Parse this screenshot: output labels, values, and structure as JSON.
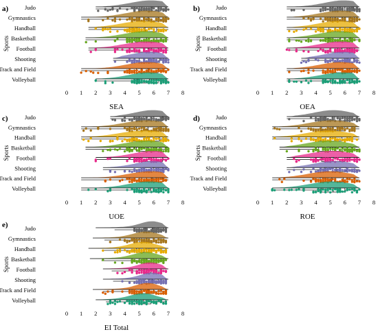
{
  "colors": {
    "Judo": "#666666",
    "Gymnastics": "#a6761d",
    "Handball": "#e6ab02",
    "Basketball": "#66a61e",
    "Football": "#e7298a",
    "Shooting": "#7570b3",
    "Track and Field": "#d95f02",
    "Volleyball": "#1b9e77"
  },
  "chart_data": [
    {
      "type": "raincloud",
      "label": "a)",
      "xlabel": "SEA",
      "ylabel": "Sports",
      "xlim": [
        0,
        8
      ],
      "xticks": [
        0,
        1,
        2,
        3,
        4,
        5,
        6,
        7,
        8
      ],
      "categories": [
        "Judo",
        "Gymnastics",
        "Handball",
        "Basketball",
        "Football",
        "Shooting",
        "Track and Field",
        "Volleyball"
      ],
      "series": [
        {
          "sport": "Judo",
          "min": 2.0,
          "q1": 5.0,
          "median": 5.9,
          "q3": 6.5,
          "max": 7.0,
          "range": [
            2.0,
            7.0
          ]
        },
        {
          "sport": "Gymnastics",
          "min": 1.0,
          "q1": 4.8,
          "median": 5.6,
          "q3": 6.3,
          "max": 7.0,
          "range": [
            1.0,
            7.0
          ]
        },
        {
          "sport": "Handball",
          "min": 1.5,
          "q1": 4.6,
          "median": 5.4,
          "q3": 6.2,
          "max": 7.0,
          "range": [
            1.5,
            7.0
          ]
        },
        {
          "sport": "Basketball",
          "min": 1.3,
          "q1": 4.7,
          "median": 5.5,
          "q3": 6.2,
          "max": 7.0,
          "range": [
            1.3,
            7.0
          ]
        },
        {
          "sport": "Football",
          "min": 1.5,
          "q1": 4.7,
          "median": 5.6,
          "q3": 6.3,
          "max": 7.0,
          "range": [
            1.5,
            7.0
          ]
        },
        {
          "sport": "Shooting",
          "min": 3.2,
          "q1": 5.0,
          "median": 5.8,
          "q3": 6.4,
          "max": 7.0,
          "range": [
            3.2,
            7.0
          ]
        },
        {
          "sport": "Track and Field",
          "min": 1.0,
          "q1": 4.8,
          "median": 5.6,
          "q3": 6.3,
          "max": 7.0,
          "range": [
            1.0,
            7.0
          ]
        },
        {
          "sport": "Volleyball",
          "min": 2.0,
          "q1": 4.9,
          "median": 5.7,
          "q3": 6.3,
          "max": 7.0,
          "range": [
            2.0,
            7.0
          ]
        }
      ]
    },
    {
      "type": "raincloud",
      "label": "b)",
      "xlabel": "OEA",
      "ylabel": "Sports",
      "xlim": [
        0,
        8
      ],
      "xticks": [
        0,
        1,
        2,
        3,
        4,
        5,
        6,
        7,
        8
      ],
      "categories": [
        "Judo",
        "Gymnastics",
        "Handball",
        "Basketball",
        "Football",
        "Shooting",
        "Track and Field",
        "Volleyball"
      ],
      "series": [
        {
          "sport": "Judo",
          "min": 2.0,
          "q1": 5.2,
          "median": 6.0,
          "q3": 6.6,
          "max": 7.0,
          "range": [
            2.0,
            7.0
          ]
        },
        {
          "sport": "Gymnastics",
          "min": 2.0,
          "q1": 5.0,
          "median": 5.8,
          "q3": 6.5,
          "max": 7.0,
          "range": [
            2.0,
            7.0
          ]
        },
        {
          "sport": "Handball",
          "min": 2.0,
          "q1": 4.9,
          "median": 5.7,
          "q3": 6.4,
          "max": 7.0,
          "range": [
            2.0,
            7.0
          ]
        },
        {
          "sport": "Basketball",
          "min": 2.0,
          "q1": 4.9,
          "median": 5.7,
          "q3": 6.4,
          "max": 7.0,
          "range": [
            2.0,
            7.0
          ]
        },
        {
          "sport": "Football",
          "min": 2.0,
          "q1": 5.0,
          "median": 5.8,
          "q3": 6.5,
          "max": 7.0,
          "range": [
            2.0,
            7.0
          ]
        },
        {
          "sport": "Shooting",
          "min": 3.0,
          "q1": 5.2,
          "median": 6.0,
          "q3": 6.6,
          "max": 7.0,
          "range": [
            3.0,
            7.0
          ]
        },
        {
          "sport": "Track and Field",
          "min": 2.0,
          "q1": 5.0,
          "median": 5.8,
          "q3": 6.5,
          "max": 7.0,
          "range": [
            2.0,
            7.0
          ]
        },
        {
          "sport": "Volleyball",
          "min": 2.0,
          "q1": 5.0,
          "median": 5.9,
          "q3": 6.5,
          "max": 7.0,
          "range": [
            2.0,
            7.0
          ]
        }
      ]
    },
    {
      "type": "raincloud",
      "label": "c)",
      "xlabel": "UOE",
      "ylabel": "Sports",
      "xlim": [
        0,
        8
      ],
      "xticks": [
        0,
        1,
        2,
        3,
        4,
        5,
        6,
        7,
        8
      ],
      "categories": [
        "Judo",
        "Gymnastics",
        "Handball",
        "Basketball",
        "Football",
        "Shooting",
        "Track and Field",
        "Volleyball"
      ],
      "series": [
        {
          "sport": "Judo",
          "min": 3.0,
          "q1": 5.3,
          "median": 6.0,
          "q3": 6.6,
          "max": 7.0,
          "range": [
            3.0,
            7.0
          ]
        },
        {
          "sport": "Gymnastics",
          "min": 1.0,
          "q1": 4.8,
          "median": 5.6,
          "q3": 6.4,
          "max": 7.0,
          "range": [
            1.0,
            7.0
          ]
        },
        {
          "sport": "Handball",
          "min": 1.0,
          "q1": 4.6,
          "median": 5.5,
          "q3": 6.4,
          "max": 7.0,
          "range": [
            1.0,
            7.0
          ]
        },
        {
          "sport": "Basketball",
          "min": 1.3,
          "q1": 4.8,
          "median": 5.6,
          "q3": 6.4,
          "max": 7.0,
          "range": [
            1.3,
            7.0
          ]
        },
        {
          "sport": "Football",
          "min": 2.0,
          "q1": 5.2,
          "median": 6.0,
          "q3": 6.6,
          "max": 7.0,
          "range": [
            2.0,
            7.0
          ]
        },
        {
          "sport": "Shooting",
          "min": 2.5,
          "q1": 5.3,
          "median": 6.0,
          "q3": 6.6,
          "max": 7.0,
          "range": [
            2.5,
            7.0
          ]
        },
        {
          "sport": "Track and Field",
          "min": 1.0,
          "q1": 5.0,
          "median": 5.9,
          "q3": 6.6,
          "max": 7.0,
          "range": [
            1.0,
            7.0
          ]
        },
        {
          "sport": "Volleyball",
          "min": 1.0,
          "q1": 5.0,
          "median": 5.8,
          "q3": 6.5,
          "max": 7.0,
          "range": [
            1.0,
            7.0
          ]
        }
      ]
    },
    {
      "type": "raincloud",
      "label": "d)",
      "xlabel": "ROE",
      "ylabel": "Sports",
      "xlim": [
        0,
        8
      ],
      "xticks": [
        0,
        1,
        2,
        3,
        4,
        5,
        6,
        7,
        8
      ],
      "categories": [
        "Judo",
        "Gymnastics",
        "Handball",
        "Basketball",
        "Football",
        "Shooting",
        "Track and Field",
        "Volleyball"
      ],
      "series": [
        {
          "sport": "Judo",
          "min": 2.0,
          "q1": 4.6,
          "median": 5.3,
          "q3": 6.0,
          "max": 7.0,
          "range": [
            2.0,
            7.0
          ]
        },
        {
          "sport": "Gymnastics",
          "min": 1.0,
          "q1": 4.4,
          "median": 5.2,
          "q3": 6.0,
          "max": 7.0,
          "range": [
            1.0,
            7.0
          ]
        },
        {
          "sport": "Handball",
          "min": 1.0,
          "q1": 4.2,
          "median": 5.0,
          "q3": 5.8,
          "max": 7.0,
          "range": [
            1.0,
            7.0
          ]
        },
        {
          "sport": "Basketball",
          "min": 1.5,
          "q1": 4.2,
          "median": 5.0,
          "q3": 5.8,
          "max": 7.0,
          "range": [
            1.5,
            7.0
          ]
        },
        {
          "sport": "Football",
          "min": 2.0,
          "q1": 4.4,
          "median": 5.2,
          "q3": 6.0,
          "max": 7.0,
          "range": [
            2.0,
            7.0
          ]
        },
        {
          "sport": "Shooting",
          "min": 2.0,
          "q1": 4.6,
          "median": 5.4,
          "q3": 6.1,
          "max": 7.0,
          "range": [
            2.0,
            7.0
          ]
        },
        {
          "sport": "Track and Field",
          "min": 1.0,
          "q1": 4.3,
          "median": 5.1,
          "q3": 5.9,
          "max": 7.0,
          "range": [
            1.0,
            7.0
          ]
        },
        {
          "sport": "Volleyball",
          "min": 1.0,
          "q1": 4.4,
          "median": 5.2,
          "q3": 6.0,
          "max": 7.0,
          "range": [
            1.0,
            7.0
          ]
        }
      ]
    },
    {
      "type": "raincloud",
      "label": "e)",
      "xlabel": "EI Total",
      "ylabel": "Sports",
      "xlim": [
        0,
        8
      ],
      "xticks": [
        0,
        1,
        2,
        3,
        4,
        5,
        6,
        7,
        8
      ],
      "categories": [
        "Judo",
        "Gymnastics",
        "Handball",
        "Basketball",
        "Football",
        "Shooting",
        "Track and Field",
        "Volleyball"
      ],
      "series": [
        {
          "sport": "Judo",
          "min": 3.3,
          "q1": 5.4,
          "median": 5.9,
          "q3": 6.3,
          "max": 6.9,
          "range": [
            2.0,
            7.0
          ]
        },
        {
          "sport": "Gymnastics",
          "min": 2.6,
          "q1": 5.0,
          "median": 5.5,
          "q3": 6.0,
          "max": 6.9,
          "range": [
            1.8,
            7.0
          ]
        },
        {
          "sport": "Handball",
          "min": 2.5,
          "q1": 4.8,
          "median": 5.3,
          "q3": 5.8,
          "max": 6.9,
          "range": [
            1.5,
            7.0
          ]
        },
        {
          "sport": "Basketball",
          "min": 2.4,
          "q1": 5.0,
          "median": 5.5,
          "q3": 6.0,
          "max": 6.9,
          "range": [
            1.6,
            7.0
          ]
        },
        {
          "sport": "Football",
          "min": 3.1,
          "q1": 5.3,
          "median": 5.8,
          "q3": 6.2,
          "max": 6.9,
          "range": [
            2.5,
            7.0
          ]
        },
        {
          "sport": "Shooting",
          "min": 3.2,
          "q1": 5.4,
          "median": 5.9,
          "q3": 6.3,
          "max": 6.9,
          "range": [
            2.5,
            7.0
          ]
        },
        {
          "sport": "Track and Field",
          "min": 2.5,
          "q1": 5.1,
          "median": 5.6,
          "q3": 6.0,
          "max": 6.9,
          "range": [
            1.8,
            7.0
          ]
        },
        {
          "sport": "Volleyball",
          "min": 2.7,
          "q1": 4.8,
          "median": 5.3,
          "q3": 5.8,
          "max": 6.9,
          "range": [
            2.0,
            7.0
          ]
        }
      ]
    }
  ]
}
